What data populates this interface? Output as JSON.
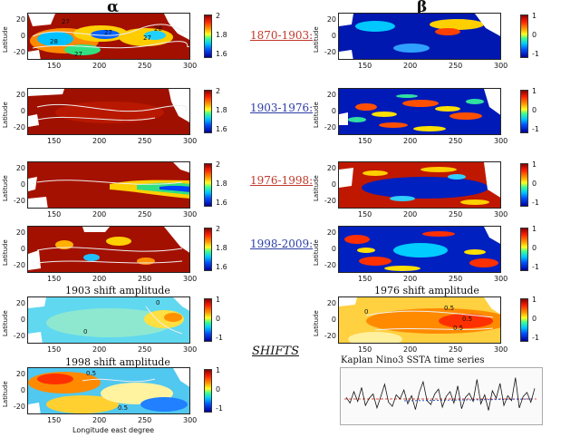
{
  "header": {
    "alpha": "α",
    "beta": "β"
  },
  "periods": [
    {
      "label": "1870-1903:",
      "color": "#c0392b"
    },
    {
      "label": "1903-1976:",
      "color": "#2c3ea8"
    },
    {
      "label": "1976-1998:",
      "color": "#c0392b"
    },
    {
      "label": "1998-2009:",
      "color": "#2c3ea8"
    }
  ],
  "shifts_label": "SHIFTS",
  "axis": {
    "ylabel": "Latitude",
    "xlabel": "Longitude east degree",
    "lon_ticks": [
      "150",
      "200",
      "250",
      "300"
    ],
    "lat_ticks": [
      "20",
      "0",
      "-20"
    ]
  },
  "colorbars": {
    "alpha": [
      "2",
      "1.8",
      "1.6"
    ],
    "beta": [
      "1",
      "0",
      "-1"
    ],
    "shift": [
      "1",
      "0",
      "-1"
    ]
  },
  "contour_labels": {
    "alpha_1870": [
      "27",
      "27",
      "28",
      "27",
      "28",
      "27"
    ],
    "shift_1903": [
      "0",
      "0"
    ],
    "shift_1976": [
      "0",
      "0.5",
      "0.5",
      "0.5"
    ],
    "shift_1998": [
      "0.5",
      "0.5"
    ]
  },
  "titles": {
    "shift_1903": "1903 shift amplitude",
    "shift_1976": "1976 shift amplitude",
    "shift_1998": "1998 shift amplitude",
    "nino3": "Kaplan Nino3 SSTA time series"
  },
  "chart_data": {
    "type": "line",
    "title": "Kaplan Nino3 SSTA time series",
    "series": [
      {
        "values": [
          0.2,
          -0.5,
          0.9,
          -0.3,
          1.4,
          -0.8,
          0.1,
          0.6,
          -1.1,
          0.3,
          1.8,
          -0.4,
          -0.9,
          0.5,
          0.0,
          1.1,
          -0.6,
          0.4,
          -1.3,
          0.8,
          2.1,
          -0.2,
          -0.7,
          0.6,
          1.2,
          -1.0,
          0.3,
          0.9,
          -0.5,
          1.6,
          -1.2,
          0.2,
          0.7,
          -0.3,
          2.4,
          -0.6,
          0.5,
          -1.4,
          1.0,
          0.1,
          1.9,
          -0.8,
          0.4,
          -0.2,
          2.6,
          -1.1,
          0.3,
          0.8,
          -0.4,
          1.3
        ]
      }
    ],
    "colors": {
      "main": "#111111",
      "ref": "#e74c3c",
      "trend": "#2e5cd6"
    }
  }
}
